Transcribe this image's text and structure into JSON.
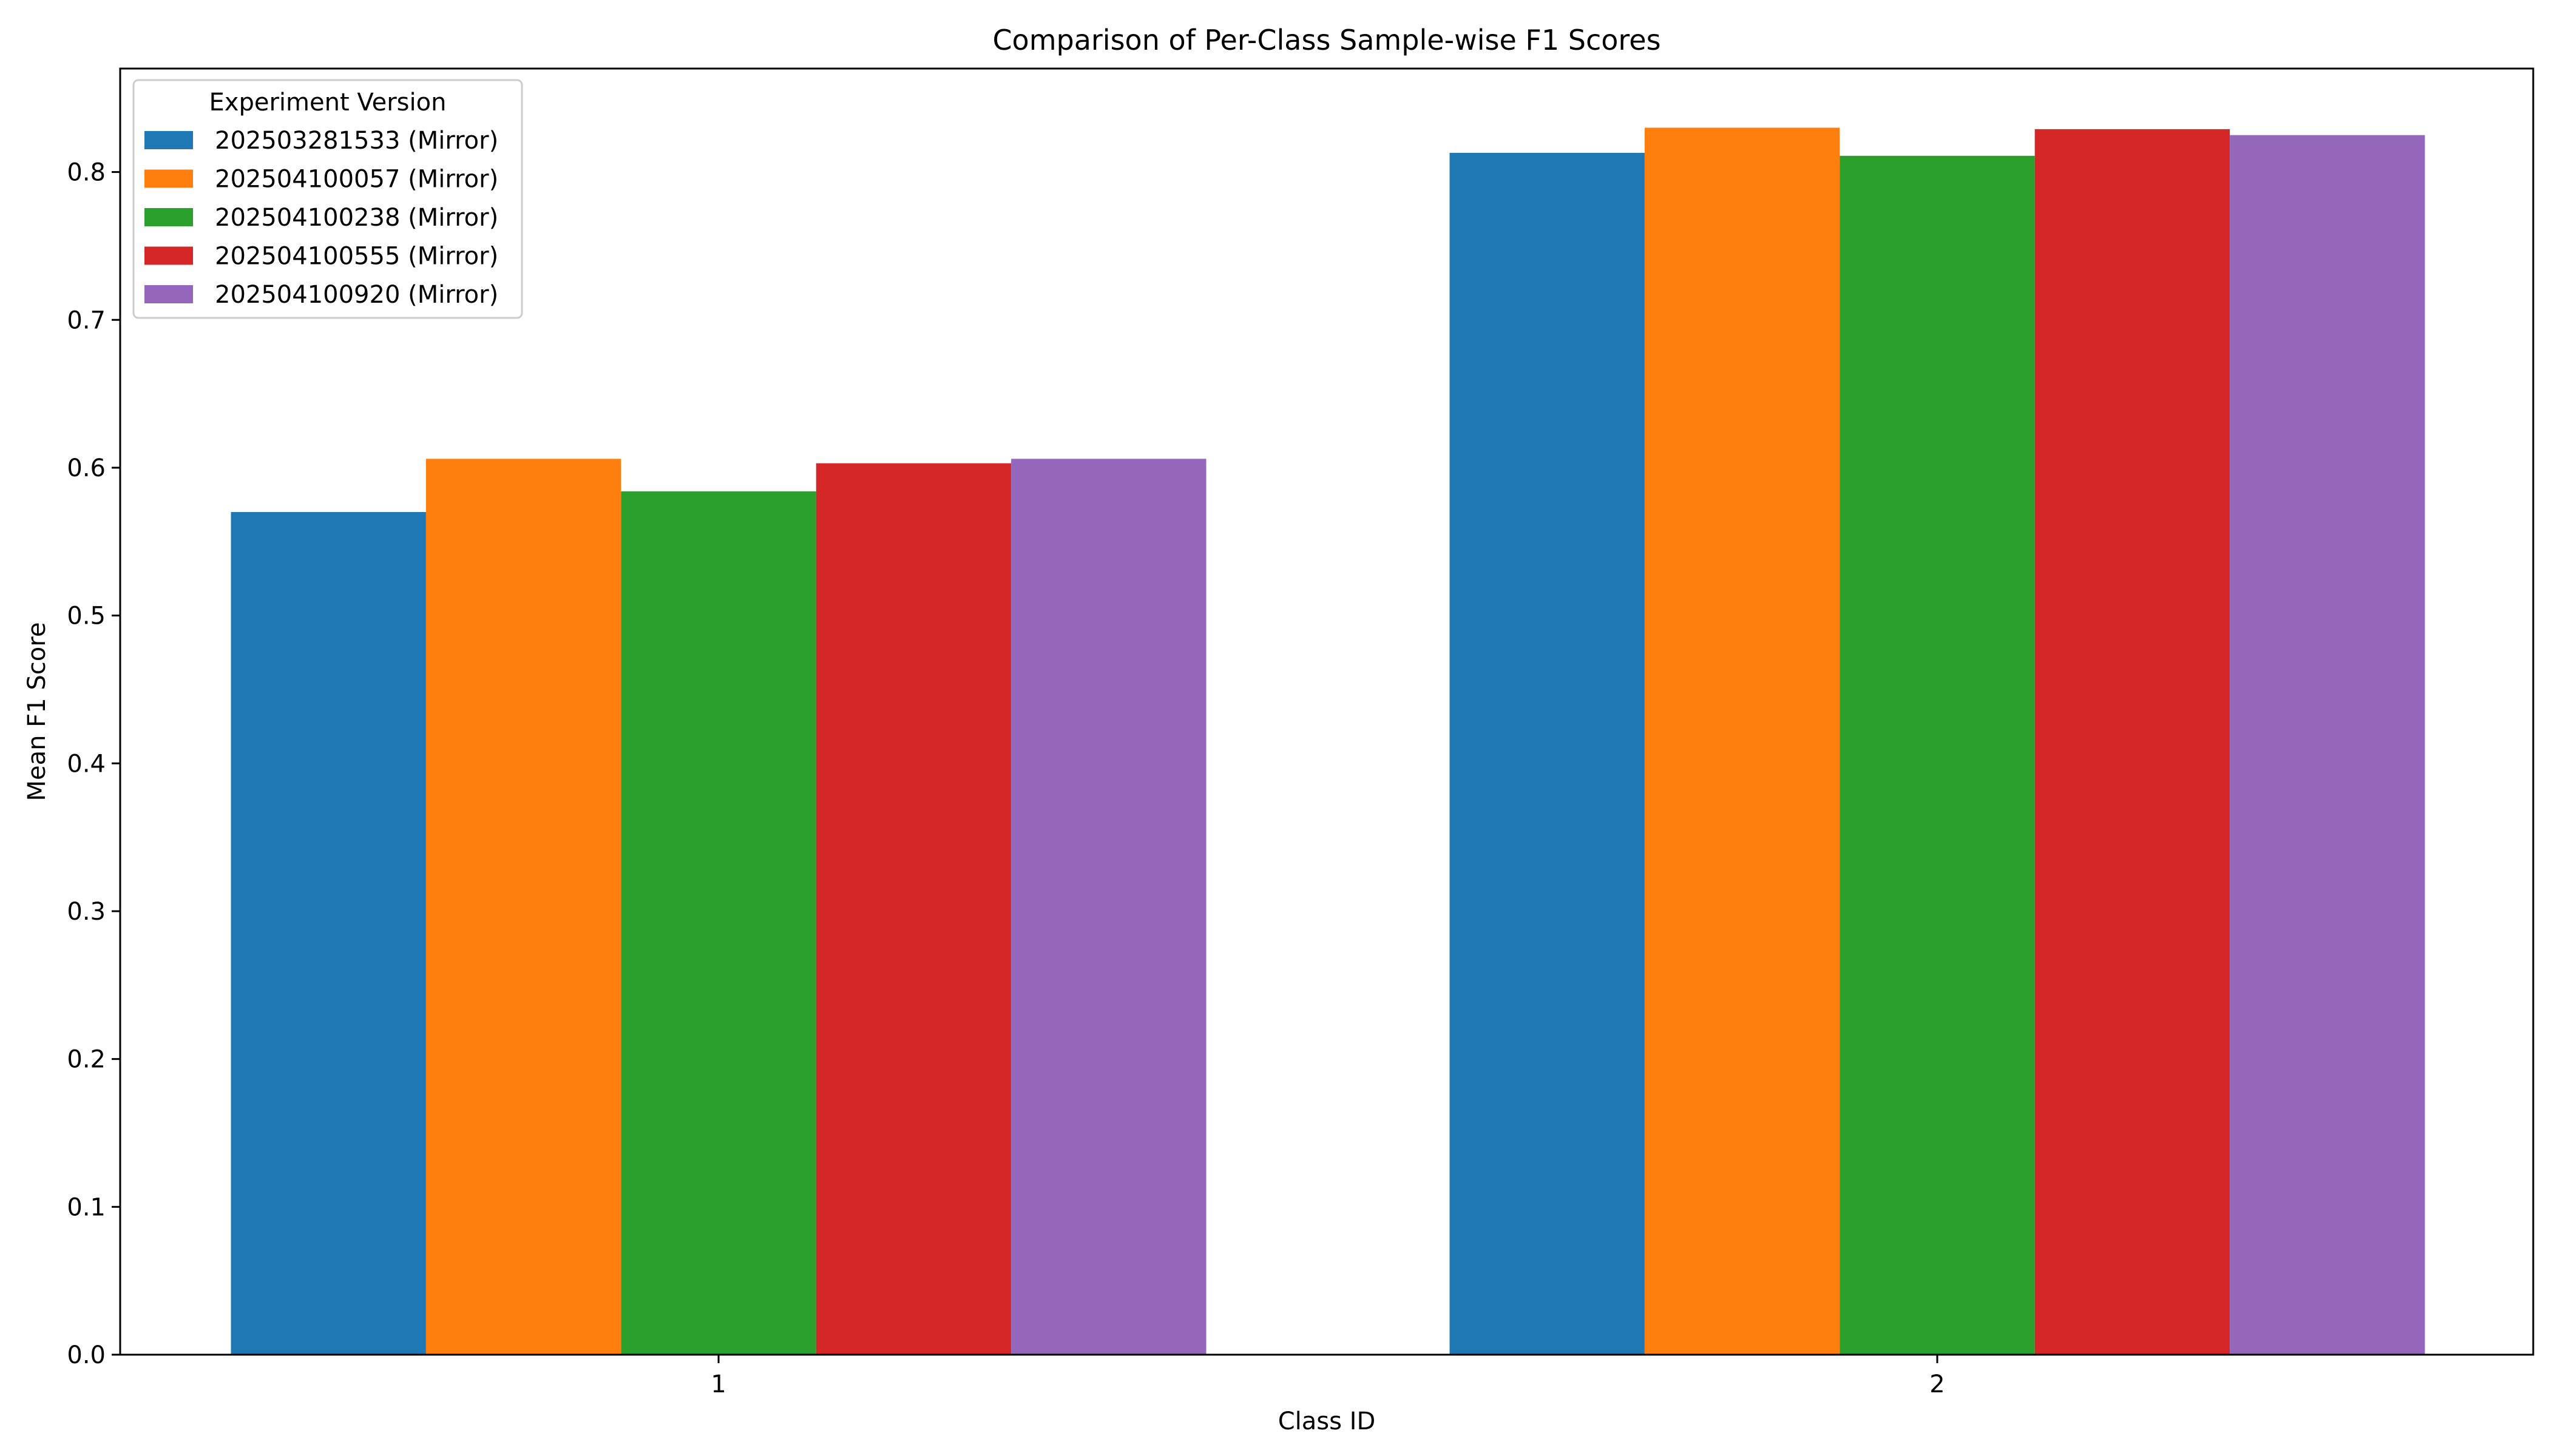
{
  "chart_data": {
    "type": "bar",
    "title": "Comparison of Per-Class Sample-wise F1 Scores",
    "xlabel": "Class ID",
    "ylabel": "Mean F1 Score",
    "categories": [
      "1",
      "2"
    ],
    "ylim": [
      0,
      0.87
    ],
    "yticks": [
      "0.0",
      "0.1",
      "0.2",
      "0.3",
      "0.4",
      "0.5",
      "0.6",
      "0.7",
      "0.8"
    ],
    "grid": false,
    "legend": {
      "title": "Experiment Version",
      "position": "top-left"
    },
    "series": [
      {
        "name": "202503281533 (Mirror)",
        "color": "#1f77b4",
        "values": [
          0.57,
          0.813
        ]
      },
      {
        "name": "202504100057 (Mirror)",
        "color": "#ff7f0e",
        "values": [
          0.606,
          0.83
        ]
      },
      {
        "name": "202504100238 (Mirror)",
        "color": "#2ca02c",
        "values": [
          0.584,
          0.811
        ]
      },
      {
        "name": "202504100555 (Mirror)",
        "color": "#d62728",
        "values": [
          0.603,
          0.829
        ]
      },
      {
        "name": "202504100920 (Mirror)",
        "color": "#9467bd",
        "values": [
          0.606,
          0.825
        ]
      }
    ]
  }
}
